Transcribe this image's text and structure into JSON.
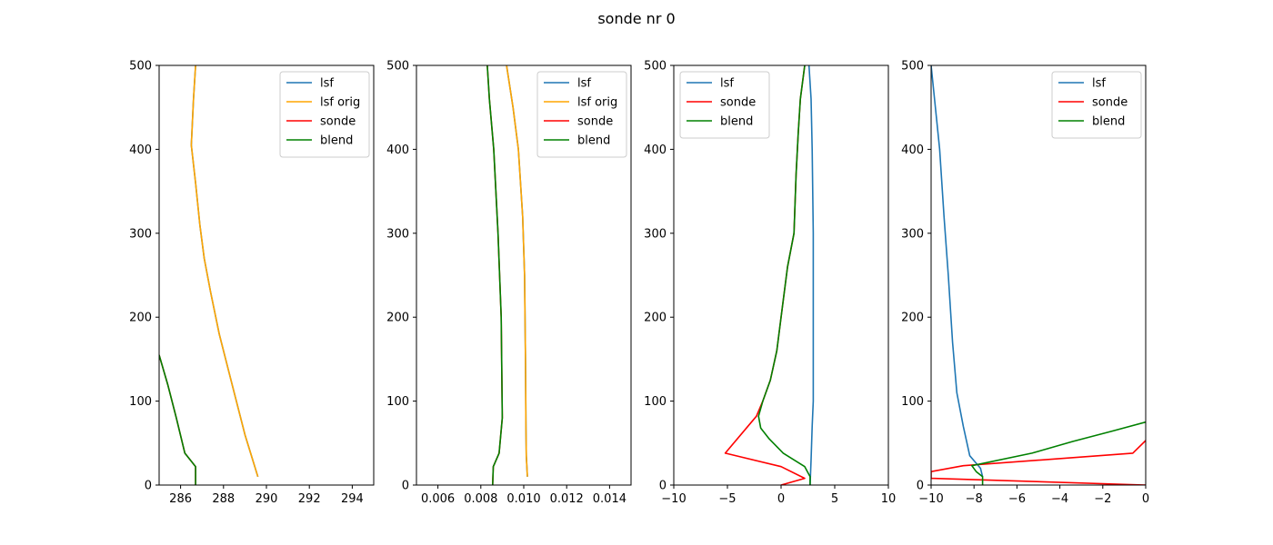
{
  "figure": {
    "title": "sonde nr 0"
  },
  "colors": {
    "lsf": "#1f77b4",
    "lsf orig": "#ffa500",
    "sonde": "#ff0000",
    "blend": "#008000"
  },
  "chart_data": [
    {
      "type": "line",
      "xlim": [
        285,
        295
      ],
      "ylim": [
        0,
        500
      ],
      "xticks": [
        286,
        288,
        290,
        292,
        294
      ],
      "xtick_labels": [
        "286",
        "288",
        "290",
        "292",
        "294"
      ],
      "yticks": [
        0,
        100,
        200,
        300,
        400,
        500
      ],
      "ytick_labels": [
        "0",
        "100",
        "200",
        "300",
        "400",
        "500"
      ],
      "legend_position": "upper right",
      "series": [
        {
          "name": "lsf",
          "x": [
            289.6,
            289.0,
            288.4,
            287.8,
            287.4,
            287.1,
            286.9,
            286.7,
            286.5,
            286.6,
            286.7
          ],
          "y": [
            10,
            60,
            120,
            180,
            230,
            270,
            310,
            360,
            405,
            460,
            500
          ]
        },
        {
          "name": "lsf orig",
          "x": [
            289.6,
            289.0,
            288.4,
            287.8,
            287.4,
            287.1,
            286.9,
            286.7,
            286.5,
            286.6,
            286.7
          ],
          "y": [
            10,
            60,
            120,
            180,
            230,
            270,
            310,
            360,
            405,
            460,
            500
          ]
        },
        {
          "name": "sonde",
          "x": [
            286.7,
            286.7,
            286.2,
            285.8,
            285.4,
            285.0
          ],
          "y": [
            0,
            22,
            38,
            80,
            120,
            155
          ]
        },
        {
          "name": "blend",
          "x": [
            286.7,
            286.7,
            286.2,
            285.8,
            285.4,
            285.0
          ],
          "y": [
            0,
            22,
            38,
            80,
            120,
            155
          ]
        }
      ]
    },
    {
      "type": "line",
      "xlim": [
        0.005,
        0.015
      ],
      "ylim": [
        0,
        500
      ],
      "xticks": [
        0.006,
        0.008,
        0.01,
        0.012,
        0.014
      ],
      "xtick_labels": [
        "0.006",
        "0.008",
        "0.010",
        "0.012",
        "0.014"
      ],
      "yticks": [
        0,
        100,
        200,
        300,
        400,
        500
      ],
      "ytick_labels": [
        "0",
        "100",
        "200",
        "300",
        "400",
        "500"
      ],
      "legend_position": "upper right",
      "series": [
        {
          "name": "lsf",
          "x": [
            0.01017,
            0.01012,
            0.0101,
            0.01008,
            0.01004,
            0.00995,
            0.00975,
            0.0095,
            0.0092
          ],
          "y": [
            10,
            35,
            70,
            150,
            250,
            320,
            400,
            450,
            500
          ]
        },
        {
          "name": "lsf orig",
          "x": [
            0.01017,
            0.01012,
            0.0101,
            0.01008,
            0.01004,
            0.00995,
            0.00975,
            0.0095,
            0.0092
          ],
          "y": [
            10,
            35,
            70,
            150,
            250,
            320,
            400,
            450,
            500
          ]
        },
        {
          "name": "sonde",
          "x": [
            0.00855,
            0.00858,
            0.00885,
            0.009,
            0.00898,
            0.00895,
            0.0088,
            0.0086,
            0.0084,
            0.0083
          ],
          "y": [
            0,
            22,
            38,
            80,
            130,
            200,
            300,
            400,
            460,
            500
          ]
        },
        {
          "name": "blend",
          "x": [
            0.00855,
            0.00858,
            0.00885,
            0.009,
            0.00898,
            0.00895,
            0.0088,
            0.0086,
            0.0084,
            0.0083
          ],
          "y": [
            0,
            22,
            38,
            80,
            130,
            200,
            300,
            400,
            460,
            500
          ]
        }
      ]
    },
    {
      "type": "line",
      "xlim": [
        -10,
        10
      ],
      "ylim": [
        0,
        500
      ],
      "xticks": [
        -10,
        -5,
        0,
        5,
        10
      ],
      "xtick_labels": [
        "−10",
        "−5",
        "0",
        "5",
        "10"
      ],
      "yticks": [
        0,
        100,
        200,
        300,
        400,
        500
      ],
      "ytick_labels": [
        "0",
        "100",
        "200",
        "300",
        "400",
        "500"
      ],
      "legend_position": "upper left",
      "series": [
        {
          "name": "lsf",
          "x": [
            2.7,
            2.8,
            2.9,
            3.0,
            3.0,
            3.0,
            2.9,
            2.8,
            2.6
          ],
          "y": [
            0,
            30,
            70,
            100,
            200,
            300,
            400,
            460,
            500
          ]
        },
        {
          "name": "sonde",
          "x": [
            0,
            2.2,
            0,
            -5.2,
            -2.3,
            -1.7,
            -1.0,
            -0.4,
            0.0,
            0.6,
            1.2,
            1.4,
            1.6,
            1.8,
            2.2
          ],
          "y": [
            0,
            8,
            22,
            38,
            82,
            100,
            125,
            160,
            200,
            260,
            300,
            370,
            420,
            460,
            500
          ]
        },
        {
          "name": "blend",
          "x": [
            2.7,
            2.7,
            2.2,
            0.2,
            -1.1,
            -1.9,
            -2.1,
            -1.7,
            -1.0,
            -0.4,
            0.0,
            0.6,
            1.2,
            1.4,
            1.6,
            1.8,
            2.2
          ],
          "y": [
            0,
            10,
            22,
            38,
            55,
            68,
            82,
            100,
            125,
            160,
            200,
            260,
            300,
            370,
            420,
            460,
            500
          ]
        }
      ]
    },
    {
      "type": "line",
      "xlim": [
        -10,
        0
      ],
      "ylim": [
        0,
        500
      ],
      "xticks": [
        -10,
        -8,
        -6,
        -4,
        -2,
        0
      ],
      "xtick_labels": [
        "−10",
        "−8",
        "−6",
        "−4",
        "−2",
        "0"
      ],
      "yticks": [
        0,
        100,
        200,
        300,
        400,
        500
      ],
      "ytick_labels": [
        "0",
        "100",
        "200",
        "300",
        "400",
        "500"
      ],
      "legend_position": "upper right",
      "series": [
        {
          "name": "lsf",
          "x": [
            -7.6,
            -7.7,
            -8.2,
            -8.5,
            -8.8,
            -9.0,
            -9.2,
            -9.4,
            -9.6,
            -10.0
          ],
          "y": [
            10,
            20,
            35,
            70,
            110,
            170,
            250,
            320,
            400,
            500
          ]
        },
        {
          "name": "sonde",
          "x": [
            0,
            -10,
            -10,
            -8.5,
            -0.6,
            0
          ],
          "y": [
            0,
            8,
            16,
            23,
            38,
            53
          ]
        },
        {
          "name": "blend",
          "x": [
            -7.6,
            -7.6,
            -7.9,
            -8.1,
            -5.3,
            -3.4,
            -1.6,
            0
          ],
          "y": [
            0,
            10,
            16,
            23,
            38,
            52,
            64,
            75
          ]
        }
      ]
    }
  ]
}
